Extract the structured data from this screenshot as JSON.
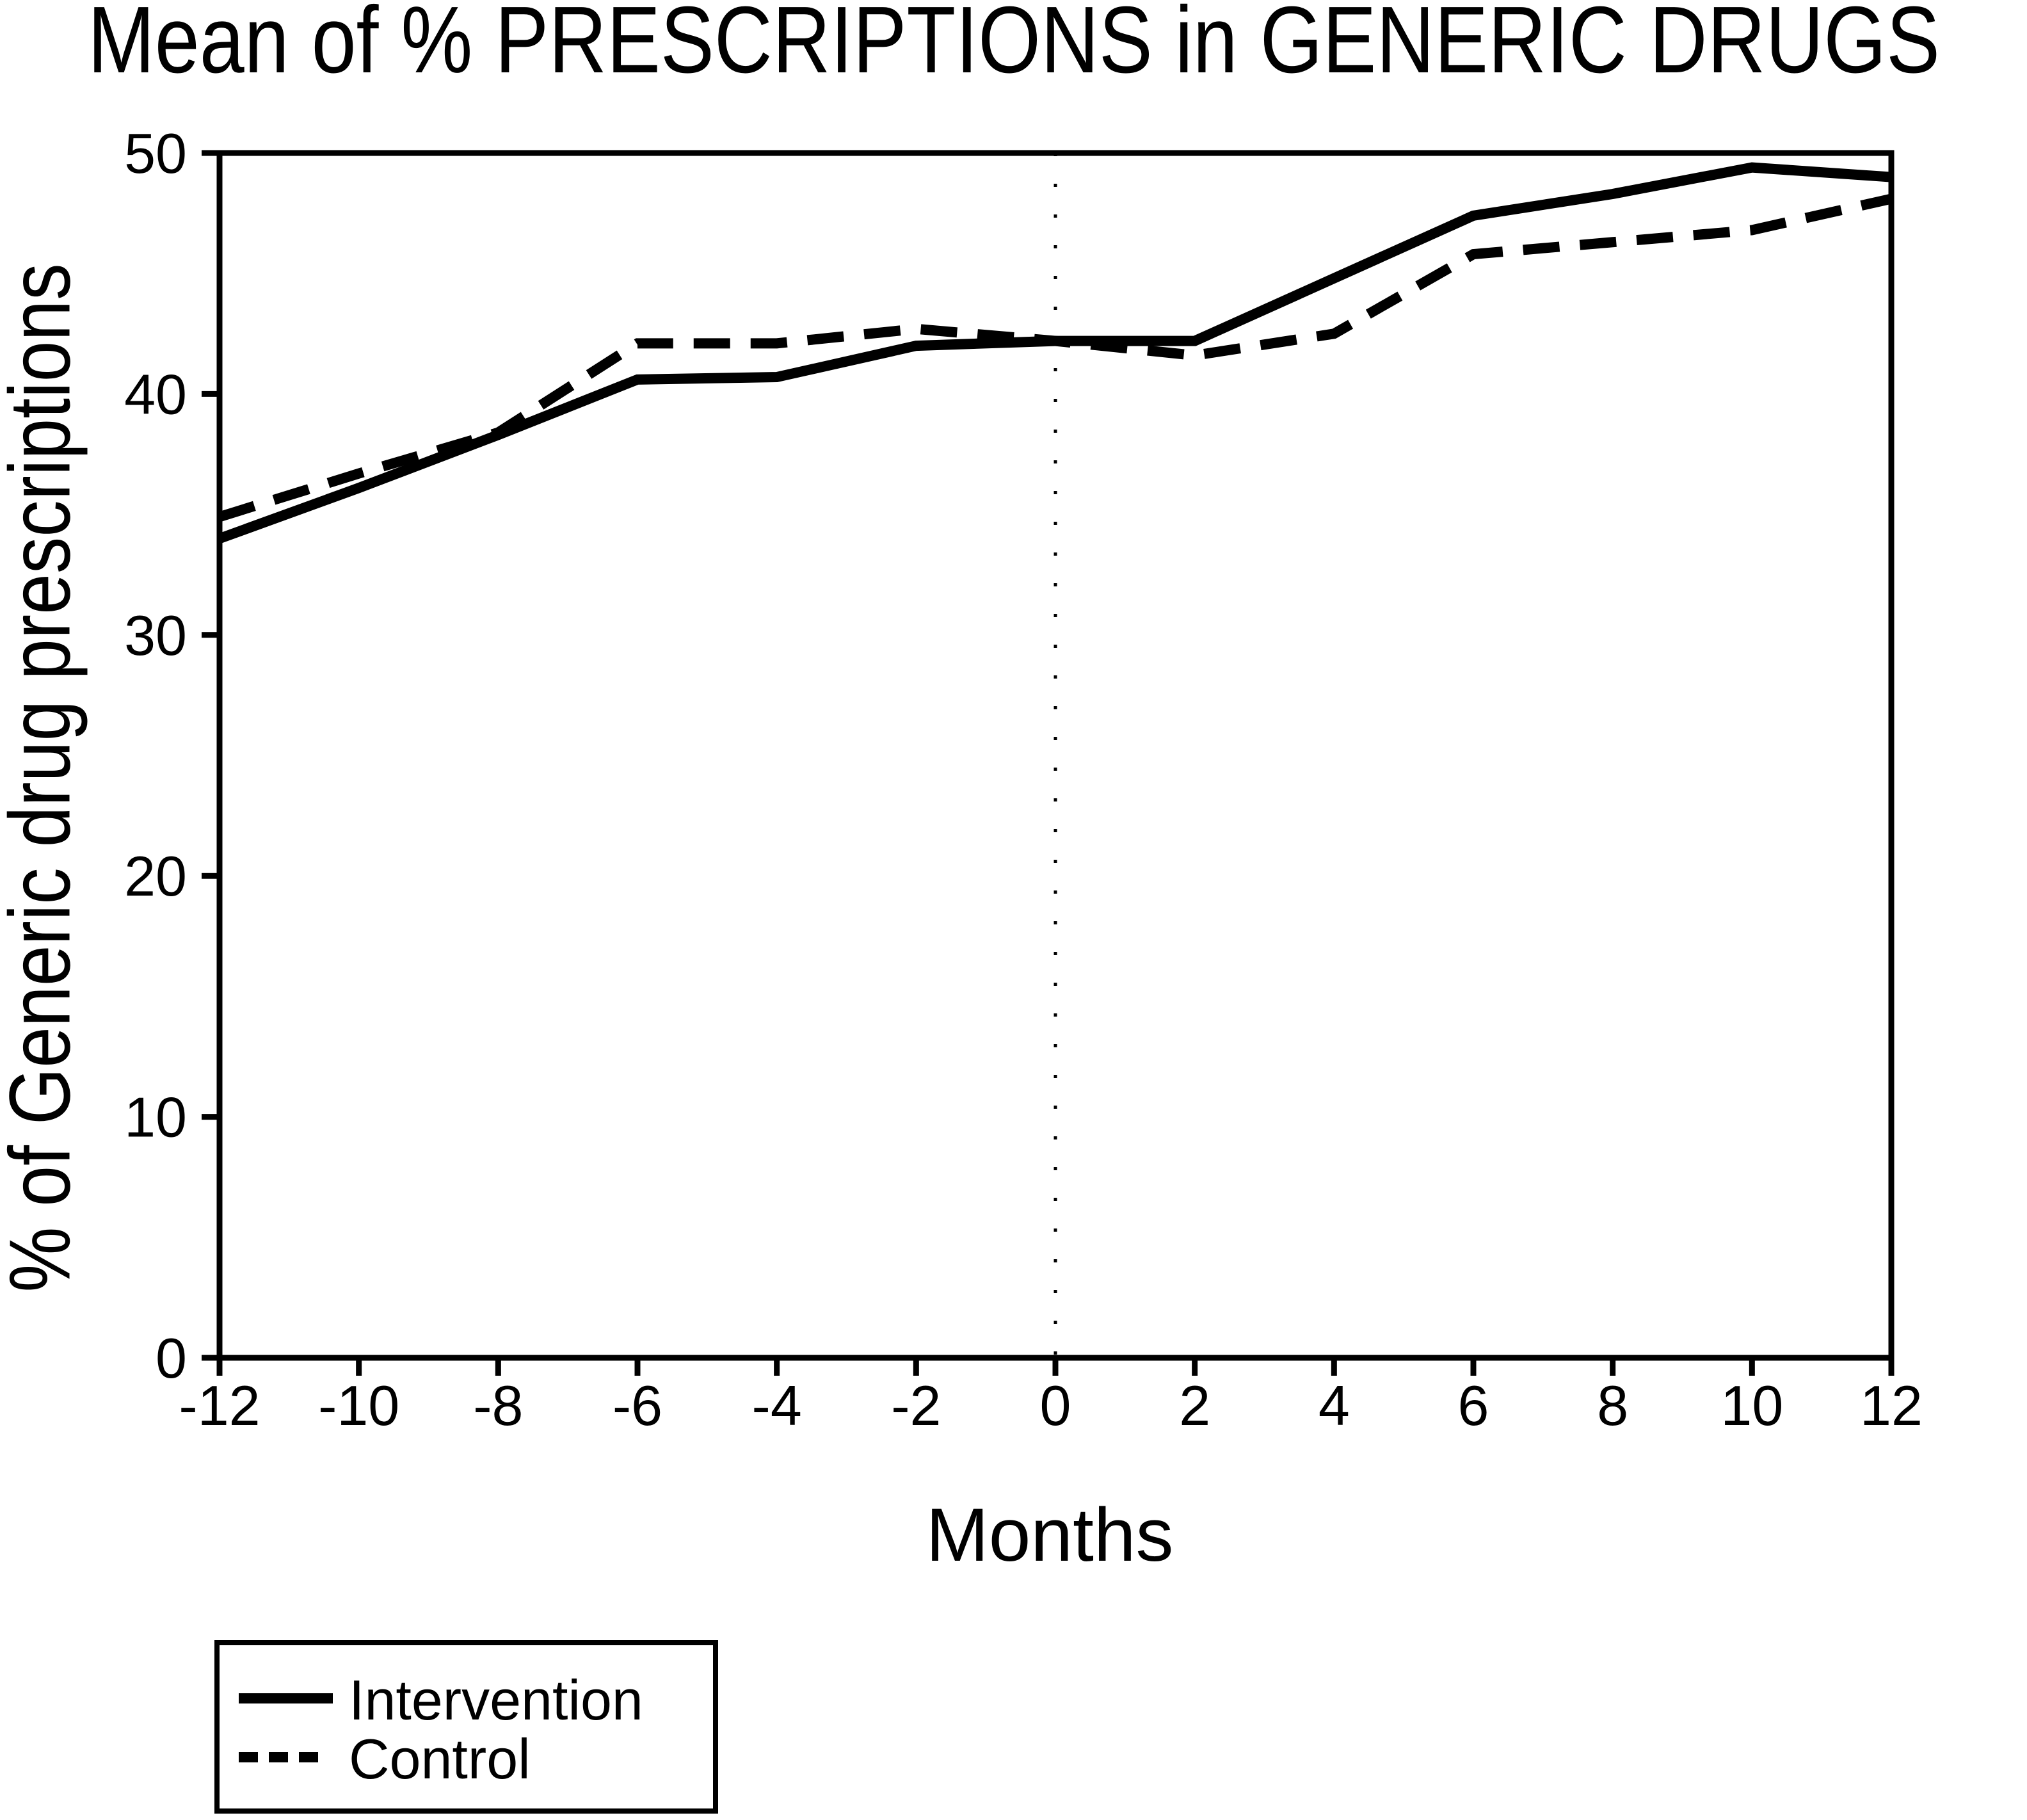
{
  "page": {
    "background": "#ffffff",
    "ink_color": "#000000"
  },
  "chart_data": {
    "type": "line",
    "title": "Mean of % PRESCRIPTIONS in GENERIC DRUGS",
    "xlabel": "Months",
    "ylabel": "% of Generic drug prescriptions",
    "xlim": [
      -12,
      12
    ],
    "ylim": [
      0,
      50
    ],
    "x_ticks": [
      -12,
      -10,
      -8,
      -6,
      -4,
      -2,
      0,
      2,
      4,
      6,
      8,
      10,
      12
    ],
    "y_ticks": [
      0,
      10,
      20,
      30,
      40,
      50
    ],
    "grid": false,
    "legend_position": "outside bottom-left, boxed",
    "reference_line": {
      "axis": "x",
      "value": 0,
      "style": "dotted"
    },
    "x": [
      -12,
      -10,
      -8,
      -6,
      -4,
      -2,
      0,
      2,
      4,
      6,
      8,
      10,
      12
    ],
    "series": [
      {
        "name": "Intervention",
        "line_style": "solid",
        "color": "#000000",
        "values": [
          34.0,
          36.1,
          38.3,
          40.6,
          40.7,
          42.0,
          42.2,
          42.2,
          44.8,
          47.4,
          48.3,
          49.4,
          49.0
        ]
      },
      {
        "name": "Control",
        "line_style": "dashed",
        "color": "#000000",
        "values": [
          34.9,
          36.7,
          38.4,
          42.1,
          42.1,
          42.7,
          42.2,
          41.6,
          42.5,
          45.8,
          46.3,
          46.8,
          48.1
        ]
      }
    ]
  }
}
